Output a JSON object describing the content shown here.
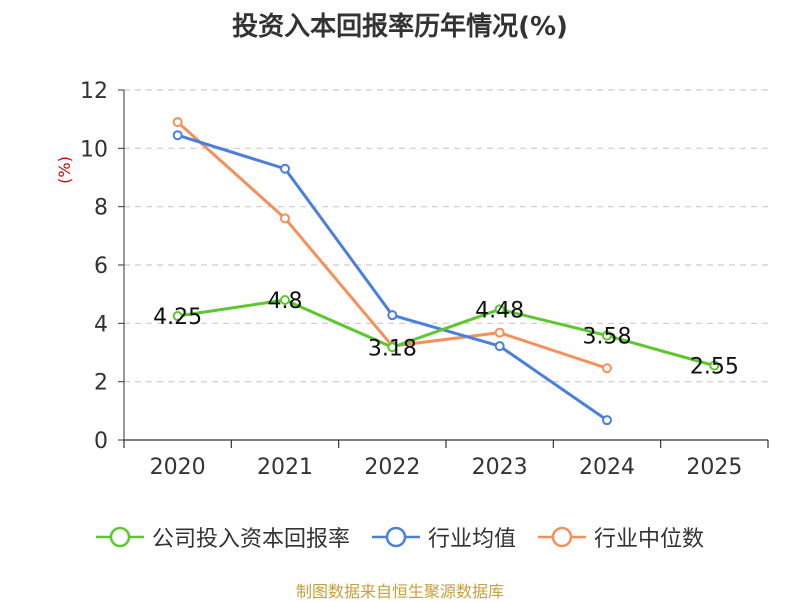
{
  "chart_data": {
    "type": "line",
    "title": "投资入本回报率历年情况(%)",
    "ylabel": "(%)",
    "xlabel": "",
    "categories": [
      "2020",
      "2021",
      "2022",
      "2023",
      "2024",
      "2025"
    ],
    "ylim": [
      0,
      12
    ],
    "yticks": [
      0,
      2,
      4,
      6,
      8,
      10,
      12
    ],
    "grid": true,
    "legend_position": "bottom",
    "series": [
      {
        "name": "公司投入资本回报率",
        "color": "#5cc82d",
        "values": [
          4.25,
          4.8,
          3.18,
          4.48,
          3.58,
          2.55
        ],
        "labels": [
          "4.25",
          "4.8",
          "3.18",
          "4.48",
          "3.58",
          "2.55"
        ]
      },
      {
        "name": "行业均值",
        "color": "#4a7fdc",
        "values": [
          10.45,
          9.3,
          4.28,
          3.22,
          0.68,
          null
        ]
      },
      {
        "name": "行业中位数",
        "color": "#f5905a",
        "values": [
          10.9,
          7.6,
          3.22,
          3.68,
          2.46,
          null
        ]
      }
    ]
  },
  "source": "制图数据来自恒生聚源数据库"
}
